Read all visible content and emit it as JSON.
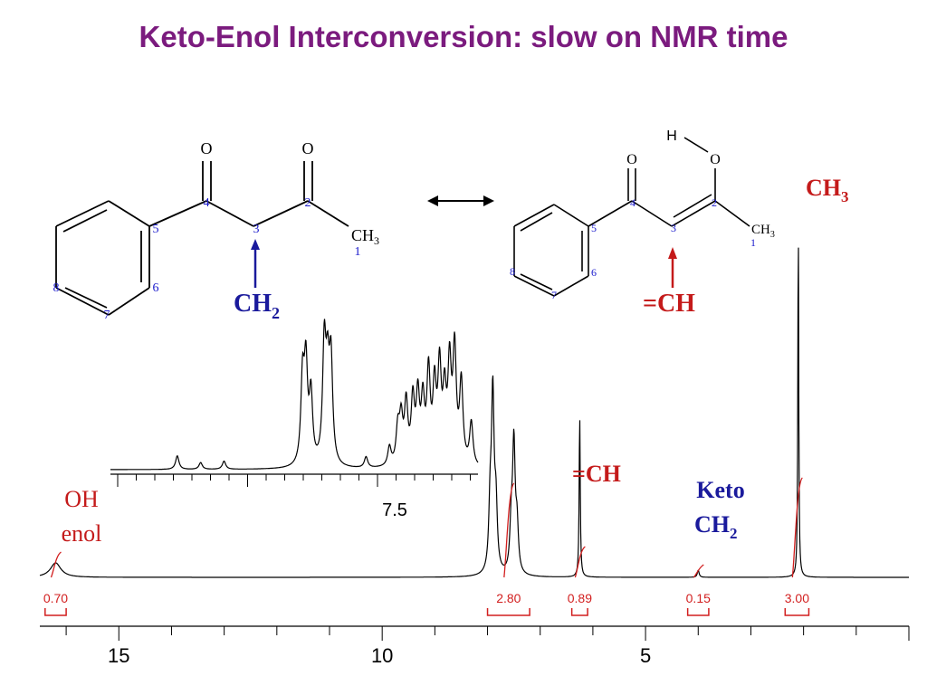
{
  "title": "Keto-Enol Interconversion: slow on NMR time",
  "colors": {
    "title": "#7b1b7e",
    "keto_label": "#1a1a9c",
    "enol_label": "#c41a1a",
    "integral": "#d21f1f",
    "atom_number": "#1a1acc",
    "spectrum": "#000000"
  },
  "keto_structure": {
    "atoms": {
      "o_left": "O",
      "o_right": "O",
      "ch3": "CH",
      "ch3_sub": "3"
    },
    "numbers": [
      "1",
      "2",
      "3",
      "4",
      "5",
      "6",
      "7",
      "8"
    ],
    "label": "CH",
    "label_sub": "2"
  },
  "enol_structure": {
    "atoms": {
      "h": "H",
      "o_hydroxyl": "O",
      "o_carbonyl": "O",
      "ch3": "CH",
      "ch3_sub": "3"
    },
    "numbers": [
      "1",
      "2",
      "3",
      "4",
      "5",
      "6",
      "7",
      "8"
    ],
    "label": "=CH"
  },
  "peak_labels": {
    "ch3": "CH",
    "ch3_sub": "3",
    "enol_ch": "=CH",
    "keto_line1": "Keto",
    "keto_line2": "CH",
    "keto_sub": "2",
    "oh_line1": "OH",
    "oh_line2": "enol"
  },
  "chart_data": {
    "type": "line",
    "title": "",
    "xlabel": "",
    "ylabel": "",
    "x_reversed": true,
    "xlim": [
      16.5,
      0
    ],
    "x_ticks": [
      "15",
      "10",
      "5"
    ],
    "x_tick_values": [
      15,
      10,
      5
    ],
    "peaks": [
      {
        "shift": 16.2,
        "height": 0.04,
        "assignment": "OH enol"
      },
      {
        "shift": 7.9,
        "height": 0.48,
        "assignment": "aromatic"
      },
      {
        "shift": 7.5,
        "height": 0.35,
        "assignment": "aromatic"
      },
      {
        "shift": 6.25,
        "height": 0.45,
        "assignment": "=CH"
      },
      {
        "shift": 4.0,
        "height": 0.02,
        "assignment": "Keto CH2"
      },
      {
        "shift": 2.1,
        "height": 1.0,
        "assignment": "CH3"
      }
    ],
    "integrals": [
      {
        "label": "0.70",
        "shift_from": 16.4,
        "shift_to": 16.0
      },
      {
        "label": "2.80",
        "shift_from": 8.0,
        "shift_to": 7.2
      },
      {
        "label": "0.89",
        "shift_from": 6.4,
        "shift_to": 6.1
      },
      {
        "label": "0.15",
        "shift_from": 4.2,
        "shift_to": 3.8
      },
      {
        "label": "3.00",
        "shift_from": 2.35,
        "shift_to": 1.9
      }
    ],
    "inset": {
      "type": "line",
      "description": "expanded aromatic region",
      "x_tick_label": "7.5"
    }
  }
}
